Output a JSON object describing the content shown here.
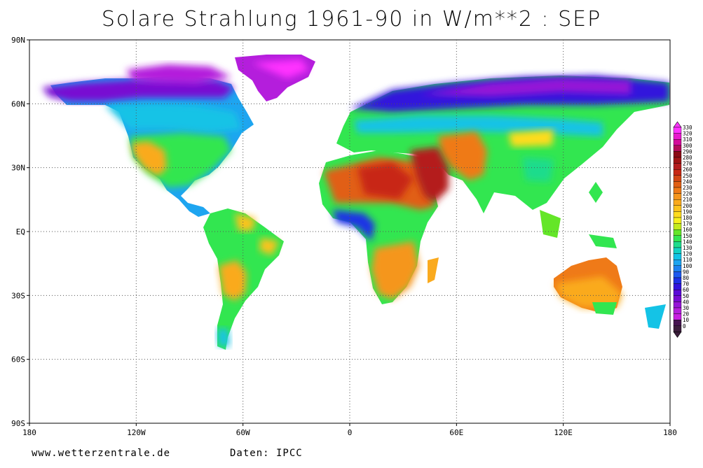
{
  "title": "Solare Strahlung 1961-90 in W/m**2 : SEP",
  "footer": {
    "source_site": "www.wetterzentrale.de",
    "data_credit": "Daten: IPCC"
  },
  "axes": {
    "lat_labels": [
      {
        "lat": 90,
        "label": "90N"
      },
      {
        "lat": 60,
        "label": "60N"
      },
      {
        "lat": 30,
        "label": "30N"
      },
      {
        "lat": 0,
        "label": "EQ"
      },
      {
        "lat": -30,
        "label": "30S"
      },
      {
        "lat": -60,
        "label": "60S"
      },
      {
        "lat": -90,
        "label": "90S"
      }
    ],
    "lon_labels": [
      {
        "lon": -180,
        "label": "180"
      },
      {
        "lon": -120,
        "label": "120W"
      },
      {
        "lon": -60,
        "label": "60W"
      },
      {
        "lon": 0,
        "label": "0"
      },
      {
        "lon": 60,
        "label": "60E"
      },
      {
        "lon": 120,
        "label": "120E"
      },
      {
        "lon": 180,
        "label": "180"
      }
    ]
  },
  "colorbar": {
    "levels": [
      "330",
      "320",
      "310",
      "300",
      "290",
      "280",
      "270",
      "260",
      "250",
      "240",
      "230",
      "220",
      "210",
      "200",
      "190",
      "180",
      "170",
      "160",
      "150",
      "140",
      "130",
      "120",
      "110",
      "100",
      "90",
      "80",
      "70",
      "60",
      "50",
      "40",
      "30",
      "20",
      "10",
      "0"
    ],
    "colors": [
      "#ff33ff",
      "#e81acd",
      "#d40a9b",
      "#b40a5a",
      "#8c0a14",
      "#a01414",
      "#b41e1e",
      "#c82814",
      "#d24614",
      "#e15f14",
      "#ef7a18",
      "#f5961e",
      "#faaa1e",
      "#fbc31e",
      "#ffdc1e",
      "#f5f01e",
      "#c3eb1e",
      "#64e628",
      "#32e650",
      "#1edc8c",
      "#14d2c3",
      "#14c3e6",
      "#1ea5f0",
      "#1e82f0",
      "#1e5af0",
      "#1e32e6",
      "#3214dc",
      "#5a0ad7",
      "#780ad2",
      "#9614d7",
      "#b41edc",
      "#c81ee1",
      "#461450",
      "#3c1e3c"
    ]
  },
  "chart_data": {
    "type": "heatmap",
    "title": "Solare Strahlung 1961-90 in W/m**2 : SEP",
    "units": "W/m**2",
    "month": "SEP",
    "period": "1961-90",
    "lon_range": [
      -180,
      180
    ],
    "lat_range": [
      -90,
      90
    ],
    "grid": true,
    "regions": [
      {
        "name": "Sahara",
        "approx_value": 250
      },
      {
        "name": "Arabian Peninsula",
        "approx_value": 270
      },
      {
        "name": "Australia interior",
        "approx_value": 230
      },
      {
        "name": "Southern Africa",
        "approx_value": 210
      },
      {
        "name": "Gulf of Guinea coast",
        "approx_value": 110
      },
      {
        "name": "Siberia",
        "approx_value": 70
      },
      {
        "name": "Greenland",
        "approx_value": 40
      },
      {
        "name": "North America mid",
        "approx_value": 160
      },
      {
        "name": "Amazon",
        "approx_value": 170
      }
    ]
  }
}
